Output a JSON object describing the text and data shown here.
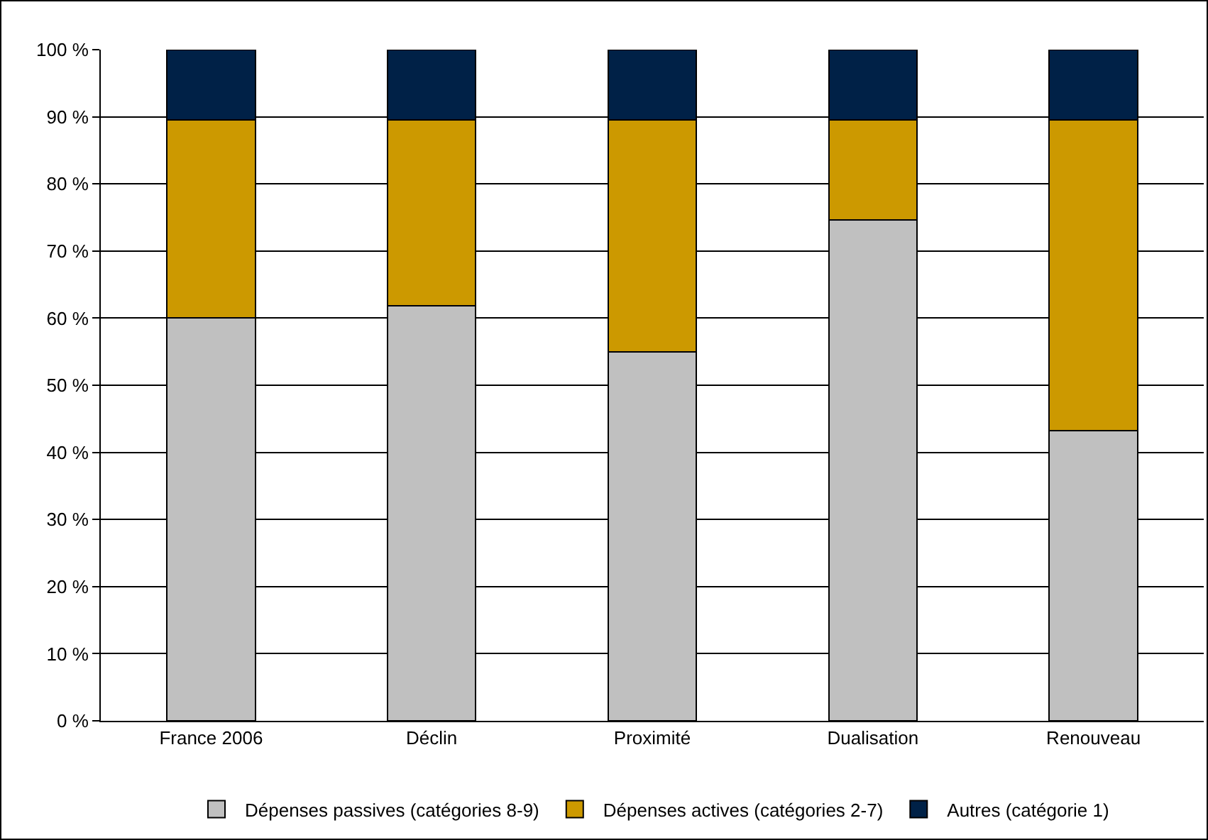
{
  "chart_data": {
    "type": "bar",
    "stacked": true,
    "categories": [
      "France 2006",
      "Déclin",
      "Proximité",
      "Dualisation",
      "Renouveau"
    ],
    "series": [
      {
        "name": "Dépenses passives (catégories 8-9)",
        "color": "#c0c0c0",
        "values": [
          60.0,
          61.8,
          55.0,
          74.6,
          43.2
        ]
      },
      {
        "name": "Dépenses actives (catégories 2-7)",
        "color": "#cc9900",
        "values": [
          29.5,
          27.7,
          34.5,
          14.9,
          46.3
        ]
      },
      {
        "name": "Autres (catégorie 1)",
        "color": "#002147",
        "values": [
          10.5,
          10.5,
          10.5,
          10.5,
          10.5
        ]
      }
    ],
    "ylim": [
      0,
      100
    ],
    "yticks": [
      {
        "value": 0,
        "label": "0 %"
      },
      {
        "value": 10,
        "label": "10 %"
      },
      {
        "value": 20,
        "label": "20 %"
      },
      {
        "value": 30,
        "label": "30 %"
      },
      {
        "value": 40,
        "label": "40 %"
      },
      {
        "value": 50,
        "label": "50 %"
      },
      {
        "value": 60,
        "label": "60 %"
      },
      {
        "value": 70,
        "label": "70 %"
      },
      {
        "value": 80,
        "label": "80 %"
      },
      {
        "value": 90,
        "label": "90 %"
      },
      {
        "value": 100,
        "label": "100 %"
      }
    ],
    "grid": "y",
    "legend": "bottom"
  }
}
